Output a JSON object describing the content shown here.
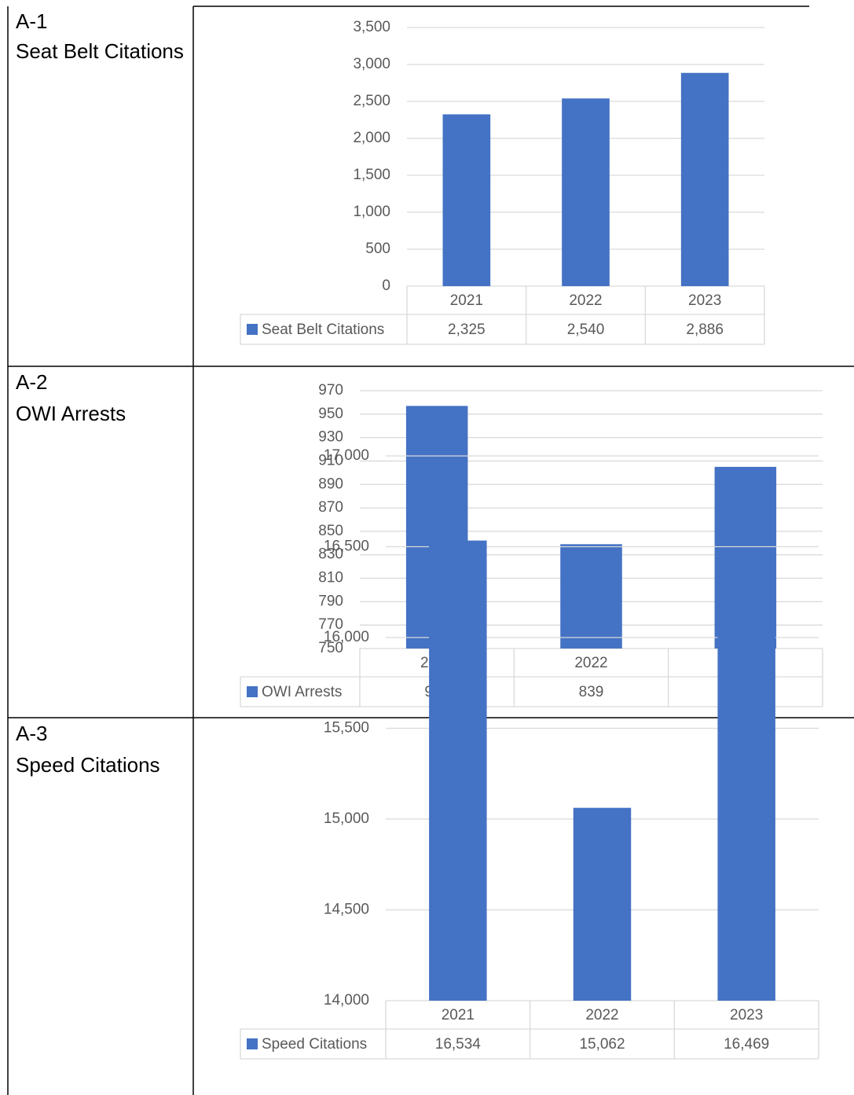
{
  "table": {
    "rows": [
      {
        "id": "A-1",
        "label": "Seat Belt Citations"
      },
      {
        "id": "A-2",
        "label": "OWI Arrests"
      },
      {
        "id": "A-3",
        "label": "Speed Citations"
      }
    ]
  },
  "chart_data": [
    {
      "type": "bar",
      "categories": [
        "2021",
        "2022",
        "2023"
      ],
      "series": [
        {
          "name": "Seat Belt Citations",
          "color": "#4472c4",
          "values": [
            2325,
            2540,
            2886
          ],
          "value_labels": [
            "2,325",
            "2,540",
            "2,886"
          ]
        }
      ],
      "ylim": [
        0,
        3500
      ],
      "yticks": [
        0,
        500,
        {
          "value": 1000,
          "label": "1,000"
        },
        {
          "value": 1500,
          "label": "1,500"
        },
        {
          "value": 2000,
          "label": "2,000"
        },
        {
          "value": 2500,
          "label": "2,500"
        },
        {
          "value": 3000,
          "label": "3,000"
        },
        {
          "value": 3500,
          "label": "3,500"
        }
      ],
      "grid": true
    },
    {
      "type": "bar",
      "categories": [
        "2021",
        "2022",
        "2023"
      ],
      "series": [
        {
          "name": "OWI Arrests",
          "color": "#4472c4",
          "values": [
            957,
            839,
            905
          ]
        }
      ],
      "ylim": [
        750,
        970
      ],
      "yticks": [
        750,
        770,
        790,
        810,
        830,
        850,
        870,
        890,
        910,
        930,
        950,
        970
      ],
      "grid": true
    },
    {
      "type": "bar",
      "categories": [
        "2021",
        "2022",
        "2023"
      ],
      "series": [
        {
          "name": "Speed Citations",
          "color": "#4472c4",
          "values": [
            16534,
            15062,
            16469
          ],
          "value_labels": [
            "16,534",
            "15,062",
            "16,469"
          ]
        }
      ],
      "ylim": [
        14000,
        17000
      ],
      "yticks": [
        {
          "value": 14000,
          "label": "14,000"
        },
        {
          "value": 14500,
          "label": "14,500"
        },
        {
          "value": 15000,
          "label": "15,000"
        },
        {
          "value": 15500,
          "label": "15,500"
        },
        {
          "value": 16000,
          "label": "16,000"
        },
        {
          "value": 16500,
          "label": "16,500"
        },
        {
          "value": 17000,
          "label": "17,000"
        }
      ],
      "grid": true
    }
  ]
}
